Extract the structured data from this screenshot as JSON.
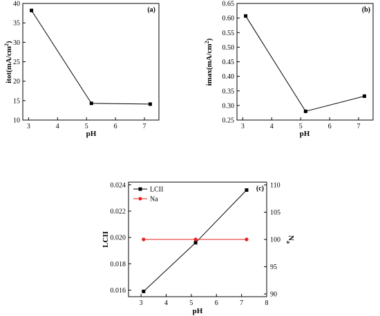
{
  "chart_data": [
    {
      "type": "line",
      "panel_label": "(a)",
      "xlabel": "pH",
      "ylabel": "itot(mA/cm²)",
      "xlim": [
        2.8,
        7.5
      ],
      "ylim": [
        10,
        40
      ],
      "xticks": [
        3,
        4,
        5,
        6,
        7
      ],
      "yticks": [
        10,
        15,
        20,
        25,
        30,
        35,
        40
      ],
      "ytick_format": "int",
      "series": [
        {
          "x": [
            3.1,
            5.17,
            7.2
          ],
          "y": [
            38.2,
            14.3,
            14.1
          ],
          "color": "#000000",
          "marker": "square"
        }
      ]
    },
    {
      "type": "line",
      "panel_label": "(b)",
      "xlabel": "pH",
      "ylabel": "imax(mA/cm²)",
      "xlim": [
        2.8,
        7.5
      ],
      "ylim": [
        0.25,
        0.65
      ],
      "xticks": [
        3,
        4,
        5,
        6,
        7
      ],
      "yticks": [
        0.25,
        0.3,
        0.35,
        0.4,
        0.45,
        0.5,
        0.55,
        0.6,
        0.65
      ],
      "ytick_format": "2dp",
      "series": [
        {
          "x": [
            3.1,
            5.17,
            7.2
          ],
          "y": [
            0.607,
            0.28,
            0.332
          ],
          "color": "#000000",
          "marker": "square"
        }
      ]
    },
    {
      "type": "line",
      "panel_label": "(c)",
      "xlabel": "pH",
      "ylabel": "LCII",
      "y2label": "Na",
      "xlim": [
        2.5,
        8
      ],
      "ylim": [
        0.0155,
        0.0242
      ],
      "y2lim": [
        89.5,
        110.5
      ],
      "xticks": [
        3,
        4,
        5,
        6,
        7,
        8
      ],
      "yticks": [
        0.016,
        0.018,
        0.02,
        0.022,
        0.024
      ],
      "ytick_format": "3dp",
      "y2ticks": [
        90,
        95,
        100,
        105,
        110
      ],
      "legend_position": "top-left",
      "series": [
        {
          "name": "LCII",
          "axis": "left",
          "x": [
            3.1,
            5.17,
            7.2
          ],
          "y": [
            0.0159,
            0.0196,
            0.0236
          ],
          "color": "#000000",
          "marker": "square"
        },
        {
          "name": "Na",
          "axis": "right",
          "x": [
            3.1,
            5.17,
            7.2
          ],
          "y": [
            100,
            100,
            100
          ],
          "color": "#e8201c",
          "marker": "circle"
        }
      ]
    }
  ]
}
